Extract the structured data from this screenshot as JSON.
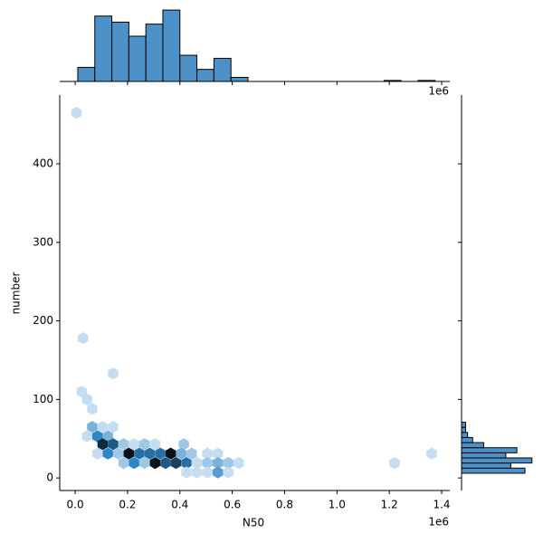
{
  "chart_data": {
    "type": "hexbin_joint",
    "x_label": "N50",
    "y_label": "number",
    "x_offset": "1e6",
    "xlim": [
      -0.059,
      1.431
    ],
    "ylim": [
      -16,
      487.6
    ],
    "xticks": [
      {
        "value": 0,
        "label": "0.0"
      },
      0.2,
      0.4,
      0.6,
      0.8,
      {
        "value": 1,
        "label": "1.0"
      },
      1.2,
      1.4
    ],
    "yticks": [
      0,
      100,
      200,
      300,
      400
    ],
    "cmap": [
      "#eaf3fb",
      "#2f86c6",
      "#06131d"
    ],
    "count_max": 10,
    "hex_color_edge": "none",
    "hexes": {
      "x": [
        0.005,
        0.03,
        0.145,
        0.025,
        0.045,
        0.065,
        0.065,
        0.105,
        0.145,
        0.045,
        0.085,
        0.125,
        0.105,
        0.145,
        0.185,
        0.225,
        0.265,
        0.305,
        0.415,
        0.085,
        0.125,
        0.165,
        0.205,
        0.245,
        0.285,
        0.325,
        0.365,
        0.405,
        0.445,
        0.505,
        0.545,
        1.362,
        0.185,
        0.225,
        0.265,
        0.305,
        0.345,
        0.385,
        0.425,
        0.465,
        0.505,
        0.545,
        0.585,
        0.625,
        1.22,
        0.425,
        0.465,
        0.505,
        0.545,
        0.585
      ],
      "y": [
        465,
        178,
        133,
        110,
        100,
        88,
        65,
        65,
        65,
        53,
        53,
        53,
        43,
        43,
        43,
        43,
        43,
        43,
        43,
        31,
        31,
        31,
        31,
        31,
        31,
        31,
        31,
        31,
        31,
        31,
        31,
        31,
        19,
        19,
        19,
        19,
        19,
        19,
        19,
        19,
        19,
        19,
        19,
        19,
        19,
        7,
        7,
        7,
        7,
        7
      ],
      "counts": [
        1,
        1,
        1,
        1,
        1,
        1,
        3,
        1,
        1,
        1,
        5,
        3,
        9,
        7,
        2,
        1,
        2,
        1,
        2,
        1,
        5,
        2,
        10,
        6,
        6,
        6,
        10,
        3,
        2,
        1,
        1,
        1,
        2,
        5,
        2,
        10,
        7,
        8,
        6,
        1,
        2,
        3,
        2,
        1,
        1,
        1,
        1,
        1,
        4,
        1
      ]
    },
    "hist_color": "#4c92c8",
    "top_hist": {
      "bins": [
        0.01,
        0.075,
        0.14,
        0.205,
        0.27,
        0.335,
        0.4,
        0.465,
        0.53,
        0.595,
        0.66,
        0.725,
        0.79,
        0.855,
        0.92,
        0.985,
        1.05,
        1.115,
        1.18,
        1.245,
        1.31,
        1.375
      ],
      "counts": [
        14,
        65,
        59,
        45,
        57,
        71,
        26,
        12,
        23,
        4,
        0,
        0,
        0,
        0,
        0,
        0,
        0,
        0,
        1,
        0,
        1
      ],
      "lim": [
        0,
        72
      ]
    },
    "right_hist": {
      "bins": [
        6,
        12.5,
        19,
        25.5,
        32,
        38.5,
        45,
        51.5,
        58,
        64.5,
        71
      ],
      "counts": [
        63,
        49,
        70,
        44,
        55,
        22,
        11,
        6,
        4,
        4
      ],
      "lim": [
        0,
        72
      ]
    }
  }
}
